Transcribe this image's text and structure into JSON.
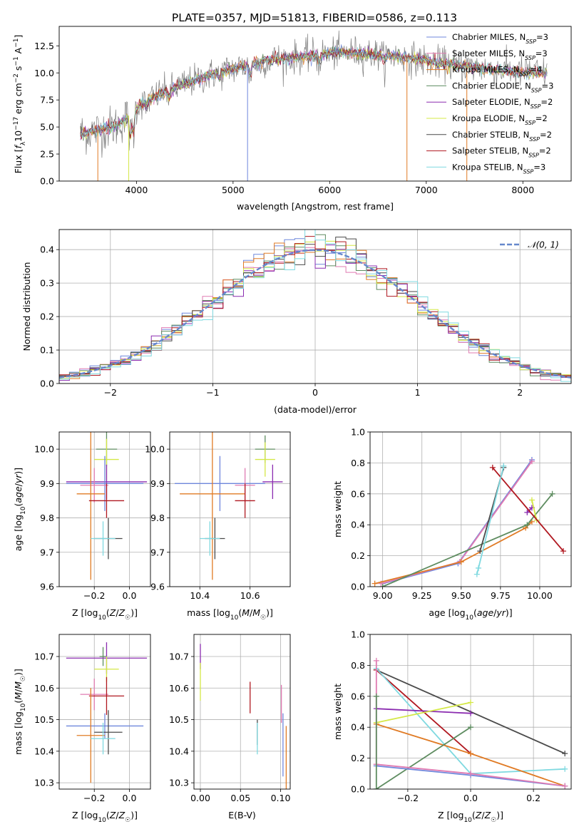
{
  "title": "PLATE=0357, MJD=51813, FIBERID=0586, z=0.113",
  "colors": {
    "chabrier_miles": "#6f87dc",
    "salpeter_miles": "#e07bb2",
    "kroupa_miles": "#e07b25",
    "chabrier_elodie": "#5e8c60",
    "salpeter_elodie": "#8b2cb0",
    "kroupa_elodie": "#d4e846",
    "chabrier_stelib": "#4a4a4a",
    "salpeter_stelib": "#b01820",
    "kroupa_stelib": "#7fd9e0",
    "gaussian": "#6688cc"
  },
  "chart_data": [
    {
      "id": "spectrum",
      "type": "line",
      "xlabel": "wavelength [Angstrom, rest frame]",
      "ylabel": "Flux [f_λ 10^-17 erg cm^-2 s^-1 A^-1]",
      "ylabel_parts": {
        "pre": "Flux [",
        "f": "f",
        "fsub": "λ",
        "mid": "10",
        "e1": "−17",
        "mid2": " erg cm",
        "e2": "−2",
        "s": " s",
        "e3": "−1",
        "a": " A",
        "e4": "−1",
        "post": "]"
      },
      "xlim": [
        3200,
        8500
      ],
      "ylim": [
        0,
        14.3
      ],
      "xticks": [
        4000,
        5000,
        6000,
        7000,
        8000
      ],
      "yticks": [
        0.0,
        2.5,
        5.0,
        7.5,
        10.0,
        12.5
      ],
      "xtick_labels": [
        "4000",
        "5000",
        "6000",
        "7000",
        "8000"
      ],
      "ytick_labels": [
        "0.0",
        "2.5",
        "5.0",
        "7.5",
        "10.0",
        "12.5"
      ],
      "continuum": {
        "x": [
          3420,
          3600,
          3800,
          3950,
          4050,
          4300,
          4600,
          4900,
          5100,
          5300,
          5600,
          5900,
          6200,
          6500,
          6800,
          7000,
          7300,
          7600,
          7900,
          8250
        ],
        "y": [
          4.4,
          4.7,
          5.1,
          6.3,
          7.2,
          8.3,
          9.3,
          10.2,
          10.6,
          11.1,
          11.4,
          11.7,
          11.9,
          11.7,
          11.4,
          11.1,
          10.7,
          10.4,
          10.1,
          10.0
        ]
      },
      "legend": [
        {
          "name": "Chabrier MILES, N_SSP=3",
          "main": "Chabrier MILES, N",
          "sub": "SSP",
          "tail": "=3",
          "color_key": "chabrier_miles"
        },
        {
          "name": "Salpeter MILES, N_SSP=3",
          "main": "Salpeter MILES, N",
          "sub": "SSP",
          "tail": "=3",
          "color_key": "salpeter_miles"
        },
        {
          "name": "Kroupa MILES, N_SSP=4",
          "main": "Kroupa MILES, N",
          "sub": "SSP",
          "tail": "=4",
          "color_key": "kroupa_miles"
        },
        {
          "name": "Chabrier ELODIE, N_SSP=3",
          "main": "Chabrier ELODIE, N",
          "sub": "SSP",
          "tail": "=3",
          "color_key": "chabrier_elodie"
        },
        {
          "name": "Salpeter ELODIE, N_SSP=2",
          "main": "Salpeter ELODIE, N",
          "sub": "SSP",
          "tail": "=2",
          "color_key": "salpeter_elodie"
        },
        {
          "name": "Kroupa ELODIE, N_SSP=2",
          "main": "Kroupa ELODIE, N",
          "sub": "SSP",
          "tail": "=2",
          "color_key": "kroupa_elodie"
        },
        {
          "name": "Chabrier STELIB, N_SSP=2",
          "main": "Chabrier STELIB, N",
          "sub": "SSP",
          "tail": "=2",
          "color_key": "chabrier_stelib"
        },
        {
          "name": "Salpeter STELIB, N_SSP=2",
          "main": "Salpeter STELIB, N",
          "sub": "SSP",
          "tail": "=2",
          "color_key": "salpeter_stelib"
        },
        {
          "name": "Kroupa STELIB, N_SSP=3",
          "main": "Kroupa STELIB, N",
          "sub": "SSP",
          "tail": "=3",
          "color_key": "kroupa_stelib"
        }
      ]
    },
    {
      "id": "residuals",
      "type": "line",
      "xlabel": "(data-model)/error",
      "ylabel": "Normed distribution",
      "xlim": [
        -2.5,
        2.5
      ],
      "ylim": [
        0,
        0.46
      ],
      "xticks": [
        -2,
        -1,
        0,
        1,
        2
      ],
      "xtick_labels": [
        "−2",
        "−1",
        "0",
        "1",
        "2"
      ],
      "yticks": [
        0.0,
        0.1,
        0.2,
        0.3,
        0.4
      ],
      "ytick_labels": [
        "0.0",
        "0.1",
        "0.2",
        "0.3",
        "0.4"
      ],
      "bin_width": 0.1,
      "series": [
        {
          "name": "𝒩(0, 1)",
          "style": "dashed",
          "color_key": "gaussian",
          "function": "standard normal pdf"
        }
      ],
      "legend_label": "𝒩(0, 1)"
    },
    {
      "id": "age_vs_Z",
      "type": "scatter",
      "xlabel": "Z [log10(Z/Z☉)]",
      "ylabel": "age [log10(age/yr)]",
      "xlim": [
        -0.4,
        0.12
      ],
      "ylim": [
        9.6,
        10.05
      ],
      "xticks": [
        -0.2,
        0.0
      ],
      "xtick_labels": [
        "−0.2",
        "0.0"
      ],
      "yticks": [
        9.6,
        9.7,
        9.8,
        9.9,
        10.0
      ],
      "ytick_labels": [
        "9.6",
        "9.7",
        "9.8",
        "9.9",
        "10.0"
      ],
      "points": [
        {
          "x": -0.13,
          "y": 10.0,
          "xerr": 0.06,
          "yerr": 0.05,
          "color_key": "chabrier_elodie"
        },
        {
          "x": -0.13,
          "y": 9.97,
          "xerr": 0.07,
          "yerr": 0.06,
          "color_key": "kroupa_elodie"
        },
        {
          "x": -0.13,
          "y": 9.905,
          "xerr": 0.23,
          "yerr": 0.05,
          "color_key": "salpeter_elodie"
        },
        {
          "x": -0.14,
          "y": 9.9,
          "xerr": 0.22,
          "yerr": 0.08,
          "color_key": "chabrier_miles"
        },
        {
          "x": -0.2,
          "y": 9.895,
          "xerr": 0.08,
          "yerr": 0.05,
          "color_key": "salpeter_miles"
        },
        {
          "x": -0.22,
          "y": 9.87,
          "xerr": 0.08,
          "yerr": 0.25,
          "color_key": "kroupa_miles"
        },
        {
          "x": -0.13,
          "y": 9.85,
          "xerr": 0.1,
          "yerr": 0.05,
          "color_key": "salpeter_stelib"
        },
        {
          "x": -0.12,
          "y": 9.74,
          "xerr": 0.08,
          "yerr": 0.06,
          "color_key": "chabrier_stelib"
        },
        {
          "x": -0.15,
          "y": 9.74,
          "xerr": 0.07,
          "yerr": 0.05,
          "color_key": "kroupa_stelib"
        }
      ]
    },
    {
      "id": "age_vs_mass",
      "type": "scatter",
      "xlabel": "mass [log10(M/M☉)]",
      "ylabel": "",
      "xlim": [
        10.28,
        10.76
      ],
      "ylim": [
        9.6,
        10.05
      ],
      "xticks": [
        10.4,
        10.6
      ],
      "xtick_labels": [
        "10.4",
        "10.6"
      ],
      "yticks": [
        9.6,
        9.7,
        9.8,
        9.9,
        10.0
      ],
      "ytick_labels": [
        "9.6",
        "9.7",
        "9.8",
        "9.9",
        "10.0"
      ],
      "points": [
        {
          "x": 10.66,
          "y": 10.0,
          "xerr": 0.04,
          "yerr": 0.04,
          "color_key": "chabrier_elodie"
        },
        {
          "x": 10.66,
          "y": 9.97,
          "xerr": 0.04,
          "yerr": 0.05,
          "color_key": "kroupa_elodie"
        },
        {
          "x": 10.69,
          "y": 9.905,
          "xerr": 0.04,
          "yerr": 0.05,
          "color_key": "salpeter_elodie"
        },
        {
          "x": 10.48,
          "y": 9.9,
          "xerr": 0.18,
          "yerr": 0.08,
          "color_key": "chabrier_miles"
        },
        {
          "x": 10.58,
          "y": 9.895,
          "xerr": 0.04,
          "yerr": 0.05,
          "color_key": "salpeter_miles"
        },
        {
          "x": 10.45,
          "y": 9.87,
          "xerr": 0.13,
          "yerr": 0.25,
          "color_key": "kroupa_miles"
        },
        {
          "x": 10.58,
          "y": 9.85,
          "xerr": 0.04,
          "yerr": 0.05,
          "color_key": "salpeter_stelib"
        },
        {
          "x": 10.46,
          "y": 9.74,
          "xerr": 0.04,
          "yerr": 0.06,
          "color_key": "chabrier_stelib"
        },
        {
          "x": 10.44,
          "y": 9.74,
          "xerr": 0.04,
          "yerr": 0.05,
          "color_key": "kroupa_stelib"
        }
      ]
    },
    {
      "id": "weight_vs_age",
      "type": "line",
      "xlabel": "age [log10(age/yr)]",
      "ylabel": "mass weight",
      "xlim": [
        8.92,
        10.2
      ],
      "ylim": [
        0,
        1.0
      ],
      "xticks": [
        9.0,
        9.25,
        9.5,
        9.75,
        10.0
      ],
      "xtick_labels": [
        "9.00",
        "9.25",
        "9.50",
        "9.75",
        "10.00"
      ],
      "yticks": [
        0.0,
        0.2,
        0.4,
        0.6,
        0.8,
        1.0
      ],
      "ytick_labels": [
        "0.0",
        "0.2",
        "0.4",
        "0.6",
        "0.8",
        "1.0"
      ],
      "series": [
        {
          "color_key": "chabrier_miles",
          "x": [
            9.0,
            9.48,
            9.95
          ],
          "y": [
            0.02,
            0.15,
            0.82
          ]
        },
        {
          "color_key": "salpeter_miles",
          "x": [
            8.99,
            9.49,
            9.95
          ],
          "y": [
            0.02,
            0.16,
            0.81
          ]
        },
        {
          "color_key": "kroupa_miles",
          "x": [
            8.95,
            9.5,
            9.91,
            9.95
          ],
          "y": [
            0.02,
            0.16,
            0.38,
            0.42
          ]
        },
        {
          "color_key": "chabrier_elodie",
          "x": [
            9.0,
            9.92,
            10.08
          ],
          "y": [
            0.0,
            0.4,
            0.6
          ]
        },
        {
          "color_key": "salpeter_elodie",
          "x": [
            9.92,
            9.95
          ],
          "y": [
            0.48,
            0.51
          ]
        },
        {
          "color_key": "kroupa_elodie",
          "x": [
            9.95,
            9.98
          ],
          "y": [
            0.56,
            0.43
          ]
        },
        {
          "color_key": "chabrier_stelib",
          "x": [
            9.62,
            9.77
          ],
          "y": [
            0.23,
            0.77
          ]
        },
        {
          "color_key": "salpeter_stelib",
          "x": [
            9.7,
            10.15
          ],
          "y": [
            0.77,
            0.23
          ]
        },
        {
          "color_key": "kroupa_stelib",
          "x": [
            9.6,
            9.61,
            9.77
          ],
          "y": [
            0.08,
            0.12,
            0.78
          ]
        }
      ]
    },
    {
      "id": "mass_vs_Z",
      "type": "scatter",
      "xlabel": "Z [log10(Z/Z☉)]",
      "ylabel": "mass [log10(M/M☉)]",
      "xlim": [
        -0.4,
        0.12
      ],
      "ylim": [
        10.28,
        10.77
      ],
      "xticks": [
        -0.2,
        0.0
      ],
      "xtick_labels": [
        "−0.2",
        "0.0"
      ],
      "yticks": [
        10.3,
        10.4,
        10.5,
        10.6,
        10.7
      ],
      "ytick_labels": [
        "10.3",
        "10.4",
        "10.5",
        "10.6",
        "10.7"
      ],
      "points": [
        {
          "x": -0.15,
          "y": 10.7,
          "xerr": 0.02,
          "yerr": 0.03,
          "color_key": "chabrier_elodie"
        },
        {
          "x": -0.13,
          "y": 10.695,
          "xerr": 0.23,
          "yerr": 0.05,
          "color_key": "salpeter_elodie"
        },
        {
          "x": -0.13,
          "y": 10.66,
          "xerr": 0.07,
          "yerr": 0.04,
          "color_key": "kroupa_elodie"
        },
        {
          "x": -0.2,
          "y": 10.58,
          "xerr": 0.08,
          "yerr": 0.05,
          "color_key": "salpeter_miles"
        },
        {
          "x": -0.13,
          "y": 10.575,
          "xerr": 0.1,
          "yerr": 0.06,
          "color_key": "salpeter_stelib"
        },
        {
          "x": -0.14,
          "y": 10.48,
          "xerr": 0.22,
          "yerr": 0.04,
          "color_key": "chabrier_miles"
        },
        {
          "x": -0.12,
          "y": 10.46,
          "xerr": 0.08,
          "yerr": 0.07,
          "color_key": "chabrier_stelib"
        },
        {
          "x": -0.22,
          "y": 10.45,
          "xerr": 0.08,
          "yerr": 0.15,
          "color_key": "kroupa_miles"
        },
        {
          "x": -0.15,
          "y": 10.44,
          "xerr": 0.07,
          "yerr": 0.05,
          "color_key": "kroupa_stelib"
        }
      ]
    },
    {
      "id": "mass_vs_ebv",
      "type": "scatter",
      "xlabel": "E(B-V)",
      "ylabel": "",
      "xlim": [
        -0.008,
        0.112
      ],
      "ylim": [
        10.28,
        10.77
      ],
      "xticks": [
        0.0,
        0.05,
        0.1
      ],
      "xtick_labels": [
        "0.00",
        "0.05",
        "0.10"
      ],
      "yticks": [
        10.3,
        10.4,
        10.5,
        10.6,
        10.7
      ],
      "ytick_labels": [
        "10.3",
        "10.4",
        "10.5",
        "10.6",
        "10.7"
      ],
      "points": [
        {
          "x": 0.0,
          "y": 10.7,
          "xerr": 0,
          "yerr": 0.04,
          "color_key": "salpeter_elodie"
        },
        {
          "x": 0.0,
          "y": 10.62,
          "xerr": 0,
          "yerr": 0.06,
          "color_key": "kroupa_elodie"
        },
        {
          "x": 0.062,
          "y": 10.57,
          "xerr": 0,
          "yerr": 0.05,
          "color_key": "salpeter_stelib"
        },
        {
          "x": 0.071,
          "y": 10.46,
          "xerr": 0,
          "yerr": 0.04,
          "color_key": "chabrier_stelib"
        },
        {
          "x": 0.071,
          "y": 10.44,
          "xerr": 0,
          "yerr": 0.05,
          "color_key": "kroupa_stelib"
        },
        {
          "x": 0.101,
          "y": 10.55,
          "xerr": 0,
          "yerr": 0.06,
          "color_key": "salpeter_miles"
        },
        {
          "x": 0.103,
          "y": 10.42,
          "xerr": 0,
          "yerr": 0.1,
          "color_key": "chabrier_miles"
        },
        {
          "x": 0.107,
          "y": 10.38,
          "xerr": 0,
          "yerr": 0.1,
          "color_key": "kroupa_miles"
        }
      ]
    },
    {
      "id": "weight_vs_Z",
      "type": "line",
      "xlabel": "Z [log10(Z/Z☉)]",
      "ylabel": "mass weight",
      "xlim": [
        -0.32,
        0.32
      ],
      "ylim": [
        0,
        1.0
      ],
      "xticks": [
        -0.2,
        0.0,
        0.2
      ],
      "xtick_labels": [
        "−0.2",
        "0.0",
        "0.2"
      ],
      "yticks": [
        0.0,
        0.2,
        0.4,
        0.6,
        0.8,
        1.0
      ],
      "ytick_labels": [
        "0.0",
        "0.2",
        "0.4",
        "0.6",
        "0.8",
        "1.0"
      ],
      "series": [
        {
          "color_key": "chabrier_stelib",
          "x": [
            -0.3,
            0.3
          ],
          "y": [
            0.77,
            0.23
          ]
        },
        {
          "color_key": "salpeter_stelib",
          "x": [
            -0.3,
            0.0
          ],
          "y": [
            0.77,
            0.23
          ]
        },
        {
          "color_key": "kroupa_stelib",
          "x": [
            -0.3,
            0.0,
            0.3
          ],
          "y": [
            0.78,
            0.1,
            0.13
          ]
        },
        {
          "color_key": "salpeter_elodie",
          "x": [
            -0.3,
            0.0
          ],
          "y": [
            0.52,
            0.49
          ]
        },
        {
          "color_key": "kroupa_elodie",
          "x": [
            -0.3,
            0.0
          ],
          "y": [
            0.43,
            0.56
          ]
        },
        {
          "color_key": "kroupa_miles",
          "x": [
            -0.3,
            0.0,
            0.3
          ],
          "y": [
            0.42,
            0.23,
            0.02
          ]
        },
        {
          "color_key": "chabrier_elodie",
          "x": [
            -0.3,
            0.0
          ],
          "y": [
            0.0,
            0.4
          ]
        },
        {
          "color_key": "chabrier_miles",
          "x": [
            -0.3,
            0.0,
            0.3
          ],
          "y": [
            0.15,
            0.09,
            0.02
          ]
        },
        {
          "color_key": "salpeter_miles",
          "x": [
            -0.3,
            0.0,
            0.3
          ],
          "y": [
            0.16,
            0.1,
            0.02
          ]
        },
        {
          "color_key": "salpeter_miles",
          "x": [
            -0.3,
            -0.3
          ],
          "y": [
            0.83,
            0.16
          ]
        },
        {
          "color_key": "chabrier_elodie",
          "x": [
            -0.3,
            -0.3
          ],
          "y": [
            0.6,
            0.0
          ]
        }
      ]
    }
  ]
}
